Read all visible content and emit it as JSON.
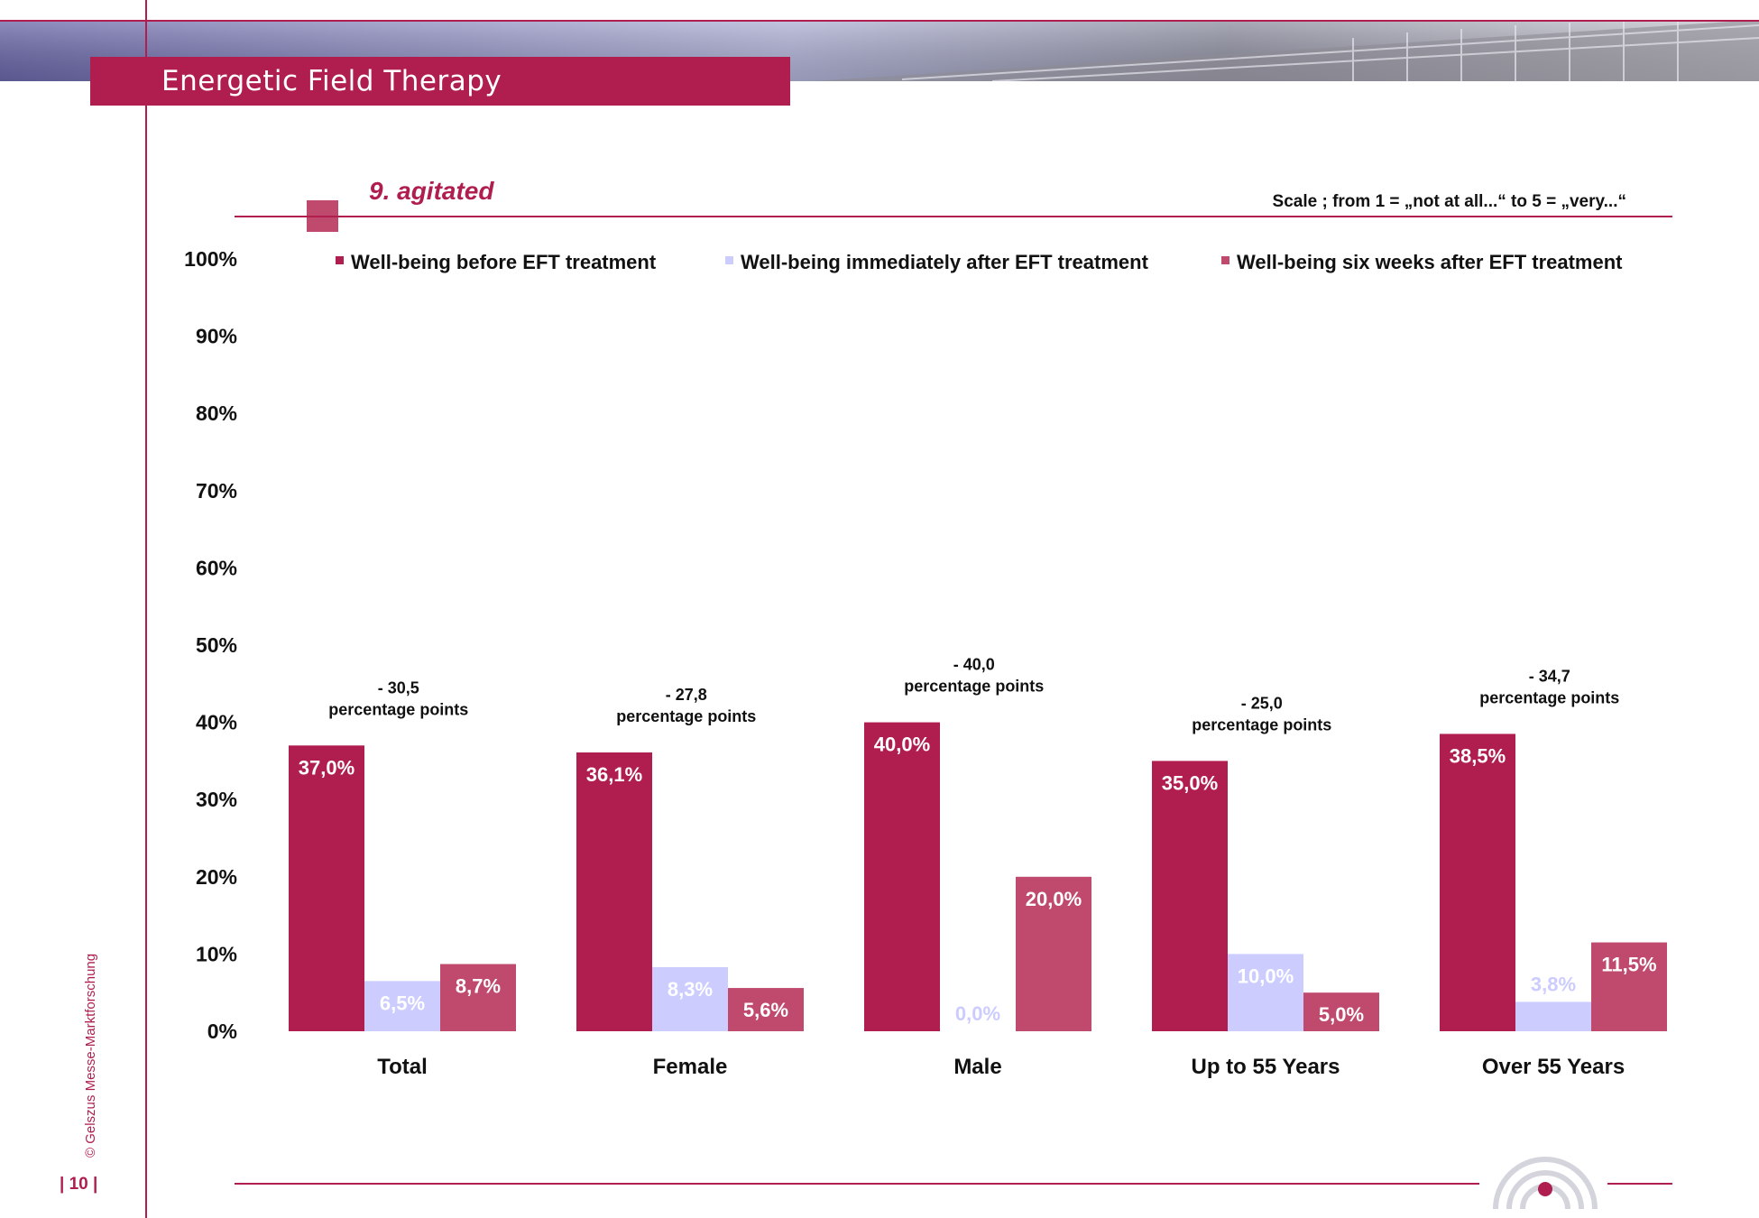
{
  "header": {
    "title": "Energetic Field Therapy"
  },
  "chart_subtitle": "9. agitated",
  "scale_note": "Scale ; from 1 = „not at all...“  to 5 = „very...“",
  "footer": {
    "credit": "© Gelszus Messe-Marktforschung",
    "page": "| 10 |"
  },
  "colors": {
    "brand": "#b01e50",
    "before": "#b01e50",
    "immediately": "#ccccff",
    "six_weeks": "#bf4a6e"
  },
  "chart_data": {
    "type": "bar",
    "categories": [
      "Total",
      "Female",
      "Male",
      "Up to 55 Years",
      "Over 55 Years"
    ],
    "series": [
      {
        "name": "Well-being before EFT treatment",
        "values": [
          37.0,
          36.1,
          40.0,
          35.0,
          38.5
        ],
        "labels": [
          "37,0%",
          "36,1%",
          "40,0%",
          "35,0%",
          "38,5%"
        ]
      },
      {
        "name": "Well-being immediately after EFT treatment",
        "values": [
          6.5,
          8.3,
          0.0,
          10.0,
          3.8
        ],
        "labels": [
          "6,5%",
          "8,3%",
          "0,0%",
          "10,0%",
          "3,8%"
        ]
      },
      {
        "name": "Well-being six weeks after EFT treatment",
        "values": [
          8.7,
          5.6,
          20.0,
          5.0,
          11.5
        ],
        "labels": [
          "8,7%",
          "5,6%",
          "20,0%",
          "5,0%",
          "11,5%"
        ]
      }
    ],
    "annotations": [
      {
        "value": "- 30,5",
        "unit": "percentage points"
      },
      {
        "value": "- 27,8",
        "unit": "percentage points"
      },
      {
        "value": "- 40,0",
        "unit": "percentage points"
      },
      {
        "value": "- 25,0",
        "unit": "percentage points"
      },
      {
        "value": "- 34,7",
        "unit": "percentage points"
      }
    ],
    "ylim": [
      0,
      100
    ],
    "yticks": [
      "0%",
      "10%",
      "20%",
      "30%",
      "40%",
      "50%",
      "60%",
      "70%",
      "80%",
      "90%",
      "100%"
    ],
    "legend": "top",
    "grid": false
  }
}
